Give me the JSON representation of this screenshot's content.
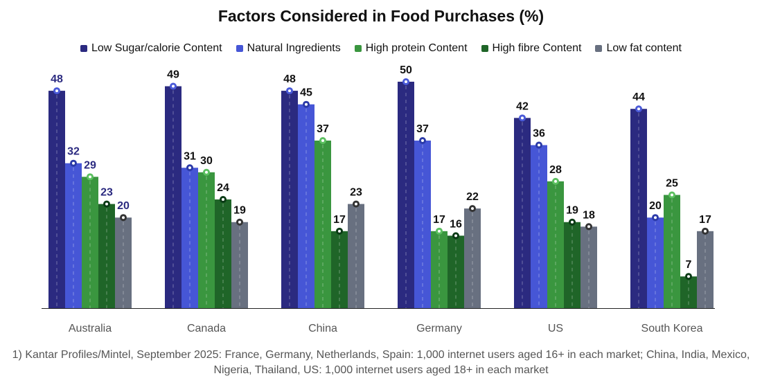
{
  "chart_data": {
    "type": "bar",
    "title": "Factors Considered in Food Purchases (%)",
    "categories": [
      "Australia",
      "Canada",
      "China",
      "Germany",
      "US",
      "South Korea"
    ],
    "series": [
      {
        "name": "Low Sugar/calorie Content",
        "color": "#2b2a80",
        "values": [
          48,
          49,
          48,
          50,
          42,
          44
        ]
      },
      {
        "name": "Natural Ingredients",
        "color": "#4656d6",
        "values": [
          32,
          31,
          45,
          37,
          36,
          20
        ]
      },
      {
        "name": "High protein Content",
        "color": "#3a963f",
        "values": [
          29,
          30,
          37,
          17,
          28,
          25
        ]
      },
      {
        "name": "High fibre Content",
        "color": "#1f6528",
        "values": [
          23,
          24,
          17,
          16,
          19,
          7
        ]
      },
      {
        "name": "Low fat content",
        "color": "#687080",
        "values": [
          20,
          19,
          23,
          22,
          18,
          17
        ]
      }
    ],
    "ylim": [
      0,
      50
    ],
    "grid": false,
    "legend": "top"
  },
  "footnote": "1) Kantar Profiles/Mintel, September 2025: France, Germany, Netherlands, Spain: 1,000 internet users aged 16+ in each market; China, India, Mexico, Nigeria, Thailand, US: 1,000 internet users aged 18+ in each market"
}
